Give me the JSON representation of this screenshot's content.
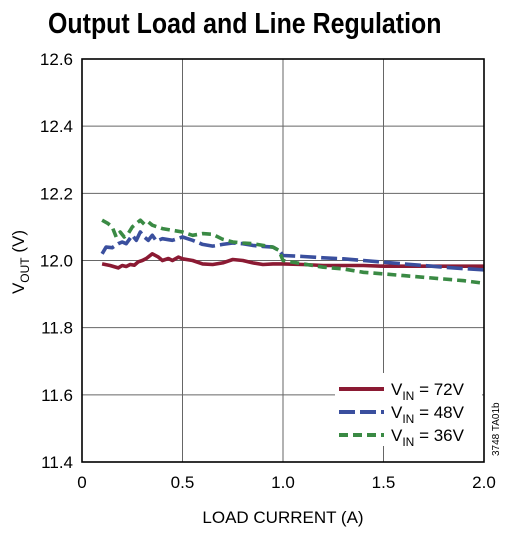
{
  "chart_data": {
    "type": "line",
    "title": "Output Load and Line Regulation",
    "xlabel": "LOAD CURRENT (A)",
    "ylabel_main": "V",
    "ylabel_sub": "OUT",
    "ylabel_unit": " (V)",
    "xlim": [
      0,
      2.0
    ],
    "ylim": [
      11.4,
      12.6
    ],
    "xticks": [
      "0",
      "0.5",
      "1.0",
      "1.5",
      "2.0"
    ],
    "yticks": [
      "11.4",
      "11.6",
      "11.8",
      "12.0",
      "12.2",
      "12.4",
      "12.6"
    ],
    "grid": true,
    "legend_position": "bottom-right",
    "side_note": "3748 TA01b",
    "series": [
      {
        "name": "VIN = 72V",
        "label_main": "V",
        "label_sub": "IN",
        "label_rest": " = 72V",
        "color": "#8b1a33",
        "dash": "solid",
        "x": [
          0.1,
          0.14,
          0.18,
          0.2,
          0.22,
          0.24,
          0.26,
          0.28,
          0.3,
          0.32,
          0.35,
          0.38,
          0.4,
          0.43,
          0.45,
          0.48,
          0.5,
          0.55,
          0.6,
          0.65,
          0.7,
          0.75,
          0.8,
          0.85,
          0.9,
          0.95,
          1.0,
          1.1,
          1.2,
          1.3,
          1.4,
          1.5,
          1.6,
          1.7,
          1.8,
          1.9,
          2.0
        ],
        "y": [
          11.99,
          11.985,
          11.978,
          11.985,
          11.982,
          11.988,
          11.986,
          11.996,
          12.0,
          12.006,
          12.02,
          12.01,
          12.0,
          12.006,
          12.0,
          12.01,
          12.005,
          12.0,
          11.99,
          11.988,
          11.993,
          12.003,
          12.0,
          11.993,
          11.988,
          11.99,
          11.99,
          11.988,
          11.985,
          11.985,
          11.985,
          11.983,
          11.983,
          11.983,
          11.983,
          11.983,
          11.983
        ]
      },
      {
        "name": "VIN = 48V",
        "label_main": "V",
        "label_sub": "IN",
        "label_rest": " = 48V",
        "color": "#3a4f9e",
        "dash": "longdash",
        "x": [
          0.1,
          0.12,
          0.15,
          0.18,
          0.2,
          0.22,
          0.25,
          0.27,
          0.29,
          0.31,
          0.33,
          0.35,
          0.37,
          0.4,
          0.45,
          0.5,
          0.55,
          0.6,
          0.65,
          0.7,
          0.75,
          0.8,
          0.85,
          0.9,
          0.95,
          0.98,
          1.0,
          1.1,
          1.2,
          1.3,
          1.4,
          1.5,
          1.6,
          1.7,
          1.8,
          1.9,
          2.0
        ],
        "y": [
          12.02,
          12.04,
          12.038,
          12.05,
          12.055,
          12.05,
          12.075,
          12.06,
          12.085,
          12.07,
          12.06,
          12.075,
          12.058,
          12.065,
          12.06,
          12.07,
          12.06,
          12.048,
          12.043,
          12.048,
          12.052,
          12.05,
          12.045,
          12.042,
          12.04,
          12.03,
          12.015,
          12.012,
          12.008,
          12.005,
          12.0,
          11.995,
          11.99,
          11.985,
          11.98,
          11.976,
          11.972
        ]
      },
      {
        "name": "VIN = 36V",
        "label_main": "V",
        "label_sub": "IN",
        "label_rest": " = 36V",
        "color": "#3a8a44",
        "dash": "shortdash",
        "x": [
          0.1,
          0.13,
          0.15,
          0.17,
          0.19,
          0.21,
          0.23,
          0.25,
          0.27,
          0.29,
          0.31,
          0.33,
          0.35,
          0.4,
          0.45,
          0.5,
          0.55,
          0.6,
          0.65,
          0.7,
          0.75,
          0.8,
          0.85,
          0.9,
          0.95,
          0.98,
          1.0,
          1.1,
          1.2,
          1.3,
          1.4,
          1.5,
          1.6,
          1.7,
          1.8,
          1.9,
          2.0
        ],
        "y": [
          12.12,
          12.11,
          12.1,
          12.07,
          12.085,
          12.07,
          12.08,
          12.1,
          12.11,
          12.12,
          12.108,
          12.115,
          12.105,
          12.095,
          12.09,
          12.085,
          12.075,
          12.08,
          12.078,
          12.063,
          12.055,
          12.052,
          12.05,
          12.045,
          12.04,
          12.03,
          12.0,
          11.99,
          11.98,
          11.975,
          11.965,
          11.96,
          11.955,
          11.95,
          11.945,
          11.94,
          11.932
        ]
      }
    ]
  }
}
